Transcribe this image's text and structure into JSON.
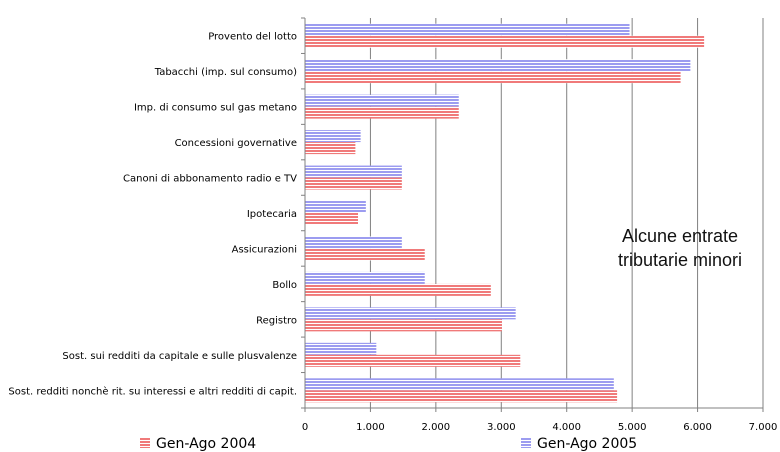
{
  "chart_data": {
    "type": "bar",
    "orientation": "horizontal",
    "title": "",
    "annotation": [
      "Alcune  entrate",
      "tributarie minori"
    ],
    "categories": [
      "Provento del lotto",
      "Tabacchi (imp. sul consumo)",
      "Imp. di consumo sul gas metano",
      "Concessioni governative",
      "Canoni di abbonamento radio e TV",
      "Ipotecaria",
      "Assicurazioni",
      "Bollo",
      "Registro",
      "Sost. sui redditi da capitale e sulle plusvalenze",
      "Sost. redditi nonchè rit. su interessi e altri redditi di capit."
    ],
    "series": [
      {
        "name": "Gen-Ago 2005",
        "color": "#9c9cf0",
        "values": [
          4960,
          5890,
          2350,
          850,
          1480,
          930,
          1480,
          1830,
          3220,
          1090,
          4720
        ]
      },
      {
        "name": "Gen-Ago 2004",
        "color": "#f07a7a",
        "values": [
          6100,
          5740,
          2350,
          770,
          1480,
          810,
          1830,
          2840,
          3010,
          3290,
          4770
        ]
      }
    ],
    "xlim": [
      0,
      7000
    ],
    "xticks": [
      "0",
      "1.000",
      "2.000",
      "3.000",
      "4.000",
      "5.000",
      "6.000",
      "7.000"
    ],
    "grid": "vertical",
    "legend": "bottom"
  }
}
